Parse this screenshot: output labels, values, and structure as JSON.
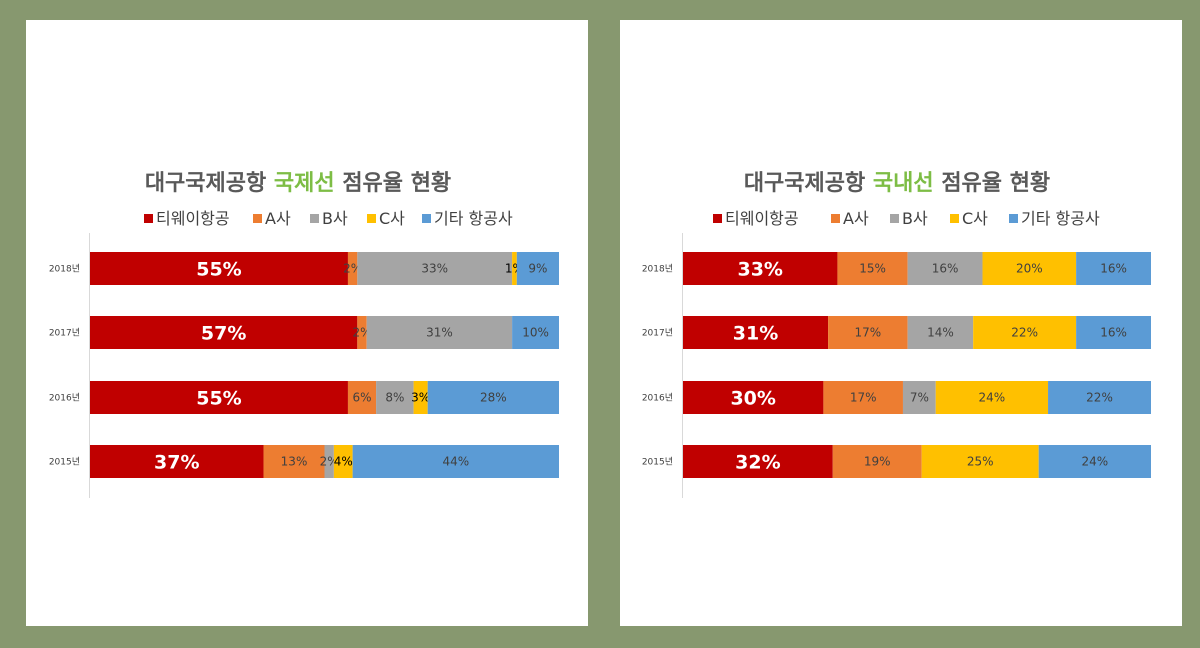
{
  "colors": {
    "background": "#87986f",
    "title_highlight": "#7dbd45"
  },
  "series_colors": [
    "#c00000",
    "#ed7d31",
    "#a5a5a5",
    "#ffc000",
    "#5b9bd5"
  ],
  "chart_data": [
    {
      "type": "bar",
      "orientation": "horizontal",
      "stacked": "100%",
      "title_parts": [
        "대구국제공항 ",
        "국제선",
        " 점유율 현황"
      ],
      "title_highlight_index": 1,
      "legend_position": "top",
      "categories": [
        "2018년",
        "2017년",
        "2016년",
        "2015년"
      ],
      "series": [
        {
          "name": "티웨이항공",
          "values": [
            55,
            57,
            55,
            37
          ],
          "labels": [
            "55%",
            "57%",
            "55%",
            "37%"
          ]
        },
        {
          "name": "A사",
          "values": [
            2,
            2,
            6,
            13
          ],
          "labels": [
            "2%",
            "2%",
            "6%",
            "13%"
          ]
        },
        {
          "name": "B사",
          "values": [
            33,
            31,
            8,
            2
          ],
          "labels": [
            "33%",
            "31%",
            "8%",
            "2%"
          ]
        },
        {
          "name": "C사",
          "values": [
            1,
            0,
            3,
            4
          ],
          "labels": [
            "1%",
            "",
            "3%",
            "4%"
          ]
        },
        {
          "name": "기타 항공사",
          "values": [
            9,
            10,
            28,
            44
          ],
          "labels": [
            "9%",
            "10%",
            "28%",
            "44%"
          ]
        }
      ]
    },
    {
      "type": "bar",
      "orientation": "horizontal",
      "stacked": "100%",
      "title_parts": [
        "대구국제공항 ",
        "국내선",
        " 점유율 현황"
      ],
      "title_highlight_index": 1,
      "legend_position": "top",
      "categories": [
        "2018년",
        "2017년",
        "2016년",
        "2015년"
      ],
      "series": [
        {
          "name": "티웨이항공",
          "values": [
            33,
            31,
            30,
            32
          ],
          "labels": [
            "33%",
            "31%",
            "30%",
            "32%"
          ]
        },
        {
          "name": "A사",
          "values": [
            15,
            17,
            17,
            19
          ],
          "labels": [
            "15%",
            "17%",
            "17%",
            "19%"
          ]
        },
        {
          "name": "B사",
          "values": [
            16,
            14,
            7,
            0
          ],
          "labels": [
            "16%",
            "14%",
            "7%",
            ""
          ]
        },
        {
          "name": "C사",
          "values": [
            20,
            22,
            24,
            25
          ],
          "labels": [
            "20%",
            "22%",
            "24%",
            "25%"
          ]
        },
        {
          "name": "기타 항공사",
          "values": [
            16,
            16,
            22,
            24
          ],
          "labels": [
            "16%",
            "16%",
            "22%",
            "24%"
          ]
        }
      ]
    }
  ]
}
